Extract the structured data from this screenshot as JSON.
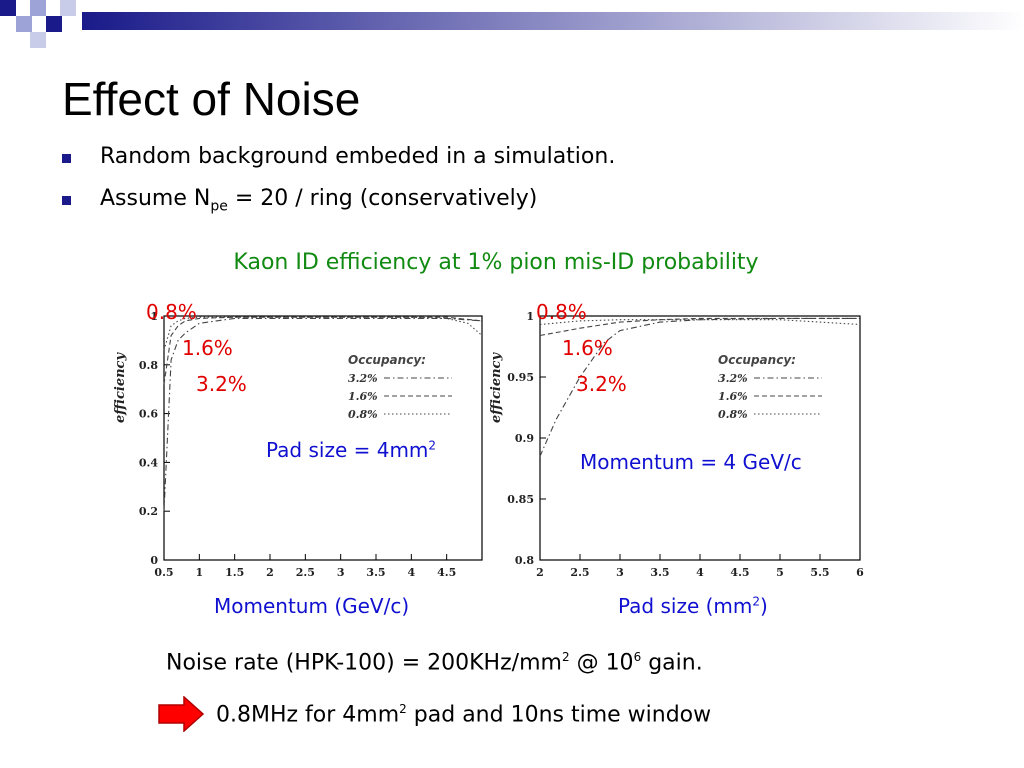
{
  "slide": {
    "title": "Effect of Noise",
    "bullets": [
      {
        "text": "Random background embeded in a simulation."
      },
      {
        "text_before": "Assume N",
        "sub": "pe",
        "text_after": " = 20 / ring (conservatively)"
      }
    ],
    "subtitle": "Kaon ID efficiency at 1% pion mis-ID probability",
    "note1": {
      "text": "Noise rate (HPK-100) = 200KHz/mm",
      "sup1": "2",
      "mid": " @ 10",
      "sup2": "6",
      "end": " gain."
    },
    "note2": {
      "text": "0.8MHz for 4mm",
      "sup": "2",
      "end": " pad and 10ns time window"
    },
    "colors": {
      "accent_blue": "#1a1a8a",
      "subtitle_green": "#118a11",
      "label_red": "#e00000",
      "label_blue": "#1010d0",
      "arrow_red": "#ff0000"
    }
  },
  "chart_data": [
    {
      "type": "line",
      "xlabel": "Momentum (GeV/c)",
      "ylabel": "efficiency",
      "xlim": [
        0.5,
        5.0
      ],
      "ylim": [
        0,
        1.0
      ],
      "xticks": [
        "0.5",
        "1",
        "1.5",
        "2",
        "2.5",
        "3",
        "3.5",
        "4",
        "4.5"
      ],
      "yticks": [
        "0",
        "0.2",
        "0.4",
        "0.6",
        "0.8",
        "1"
      ],
      "legend_title": "Occupancy:",
      "legend_position": "right-middle",
      "annotation": {
        "text": "Pad size = 4mm",
        "sup": "2"
      },
      "series": [
        {
          "name": "3.2%",
          "style": "dash-dot",
          "x": [
            0.5,
            0.6,
            0.7,
            0.8,
            1.0,
            1.5,
            2,
            3,
            4,
            4.5,
            5.0
          ],
          "values": [
            0.2,
            0.82,
            0.9,
            0.93,
            0.97,
            0.99,
            0.99,
            0.99,
            0.99,
            0.99,
            0.98
          ]
        },
        {
          "name": "1.6%",
          "style": "dashed",
          "x": [
            0.5,
            0.6,
            0.7,
            0.8,
            1.0,
            1.5,
            2,
            3,
            4,
            4.5,
            5.0
          ],
          "values": [
            0.72,
            0.92,
            0.96,
            0.98,
            0.99,
            0.995,
            0.995,
            0.995,
            0.995,
            0.995,
            0.98
          ]
        },
        {
          "name": "0.8%",
          "style": "dotted",
          "x": [
            0.5,
            0.6,
            0.7,
            0.8,
            1.0,
            1.5,
            2,
            3,
            4,
            4.5,
            4.8,
            5.0
          ],
          "values": [
            0.86,
            0.96,
            0.98,
            0.99,
            0.995,
            0.995,
            0.995,
            0.995,
            0.995,
            0.99,
            0.97,
            0.92
          ]
        }
      ],
      "curve_labels": [
        "0.8%",
        "1.6%",
        "3.2%"
      ]
    },
    {
      "type": "line",
      "xlabel": "Pad size (mm",
      "xlabel_sup": "2",
      "xlabel_end": ")",
      "ylabel": "efficiency",
      "xlim": [
        2,
        6
      ],
      "ylim": [
        0.8,
        1.0
      ],
      "xticks": [
        "2",
        "2.5",
        "3",
        "3.5",
        "4",
        "4.5",
        "5",
        "5.5",
        "6"
      ],
      "yticks": [
        "0.8",
        "0.85",
        "0.9",
        "0.95",
        "1"
      ],
      "legend_title": "Occupancy:",
      "legend_position": "right-middle",
      "annotation": {
        "text": "Momentum = 4 GeV/c"
      },
      "series": [
        {
          "name": "3.2%",
          "style": "dash-dot",
          "x": [
            2.0,
            2.2,
            2.5,
            2.8,
            3.0,
            3.5,
            4,
            5,
            6
          ],
          "values": [
            0.885,
            0.915,
            0.95,
            0.978,
            0.988,
            0.995,
            0.997,
            0.998,
            0.998
          ]
        },
        {
          "name": "1.6%",
          "style": "dashed",
          "x": [
            2.0,
            2.5,
            3.0,
            3.5,
            4,
            5,
            6
          ],
          "values": [
            0.984,
            0.99,
            0.995,
            0.997,
            0.998,
            0.998,
            0.998
          ]
        },
        {
          "name": "0.8%",
          "style": "dotted",
          "x": [
            2.0,
            2.5,
            3.0,
            3.5,
            4,
            5,
            6
          ],
          "values": [
            0.993,
            0.996,
            0.997,
            0.997,
            0.997,
            0.997,
            0.993
          ]
        }
      ],
      "curve_labels": [
        "0.8%",
        "1.6%",
        "3.2%"
      ]
    }
  ]
}
